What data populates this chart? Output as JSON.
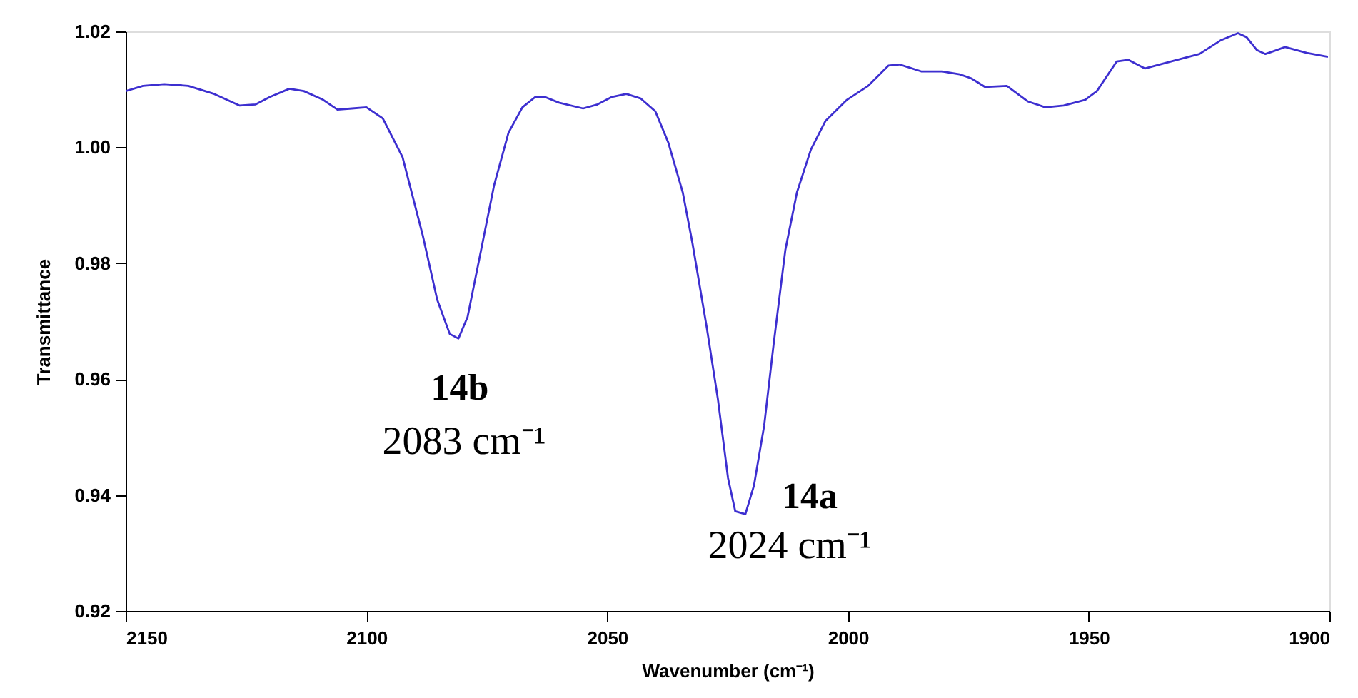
{
  "chart_data": {
    "type": "line",
    "xlabel": "Wavenumber (cm⁻¹)",
    "ylabel": "Transmittance",
    "series": [
      {
        "color": "#3d2fd0",
        "x": [
          2150,
          2146.4,
          2142,
          2137,
          2131.6,
          2126.3,
          2123,
          2120,
          2116,
          2113,
          2109,
          2106,
          2103,
          2100,
          2096.6,
          2092.5,
          2088.3,
          2085.3,
          2082.7,
          2080.9,
          2079,
          2076.5,
          2073.5,
          2070.5,
          2067.6,
          2064.9,
          2063,
          2060,
          2055,
          2052,
          2049,
          2046,
          2043,
          2040,
          2037.3,
          2034.3,
          2032.3,
          2029.3,
          2027,
          2024.9,
          2023.4,
          2021.3,
          2019.5,
          2017.4,
          2015.4,
          2013,
          2010.6,
          2007.7,
          2004.7,
          2000.2,
          1995.8,
          1991.6,
          1989.3,
          1984.8,
          1980.4,
          1976.8,
          1974.4,
          1971.5,
          1967,
          1962.6,
          1959,
          1955.2,
          1950.7,
          1948.3,
          1944.2,
          1941.8,
          1938.3,
          1932.9,
          1927,
          1922.5,
          1919,
          1917.2,
          1915.1,
          1913.3,
          1909.2,
          1904.7,
          1900.3
        ],
        "values": [
          1.0097,
          1.0106,
          1.0109,
          1.0106,
          1.0092,
          1.0072,
          1.0074,
          1.0087,
          1.0101,
          1.0097,
          1.0082,
          1.0065,
          1.0067,
          1.0069,
          1.005,
          0.9983,
          0.9848,
          0.9737,
          0.9678,
          0.967,
          0.9707,
          0.981,
          0.9934,
          1.0025,
          1.0069,
          1.0087,
          1.0087,
          1.0077,
          1.0067,
          1.0074,
          1.0087,
          1.0092,
          1.0084,
          1.0062,
          1.0008,
          0.9922,
          0.9835,
          0.9688,
          0.9565,
          0.9429,
          0.9372,
          0.9367,
          0.9417,
          0.952,
          0.9663,
          0.9823,
          0.9922,
          0.9996,
          1.0045,
          1.0082,
          1.0106,
          1.0141,
          1.0143,
          1.0131,
          1.0131,
          1.0126,
          1.0119,
          1.0104,
          1.0106,
          1.0079,
          1.0069,
          1.0072,
          1.0082,
          1.0097,
          1.0148,
          1.0151,
          1.0136,
          1.0148,
          1.0161,
          1.0185,
          1.0197,
          1.019,
          1.0168,
          1.0161,
          1.0173,
          1.0163,
          1.0156
        ]
      }
    ],
    "xlim": [
      2150,
      1900
    ],
    "xticks": [
      2150,
      2100,
      2050,
      2000,
      1950,
      1900
    ],
    "ylim": [
      0.92,
      1.02
    ],
    "yticks": [
      0.92,
      0.94,
      0.96,
      0.98,
      {
        "value": 1,
        "label": "1.00"
      },
      1.02
    ],
    "annotations": [
      "14b",
      "2083 cm⁻¹",
      "14a",
      "2024 cm⁻¹"
    ],
    "grid": false,
    "marker": "none",
    "line_style": "solid"
  }
}
